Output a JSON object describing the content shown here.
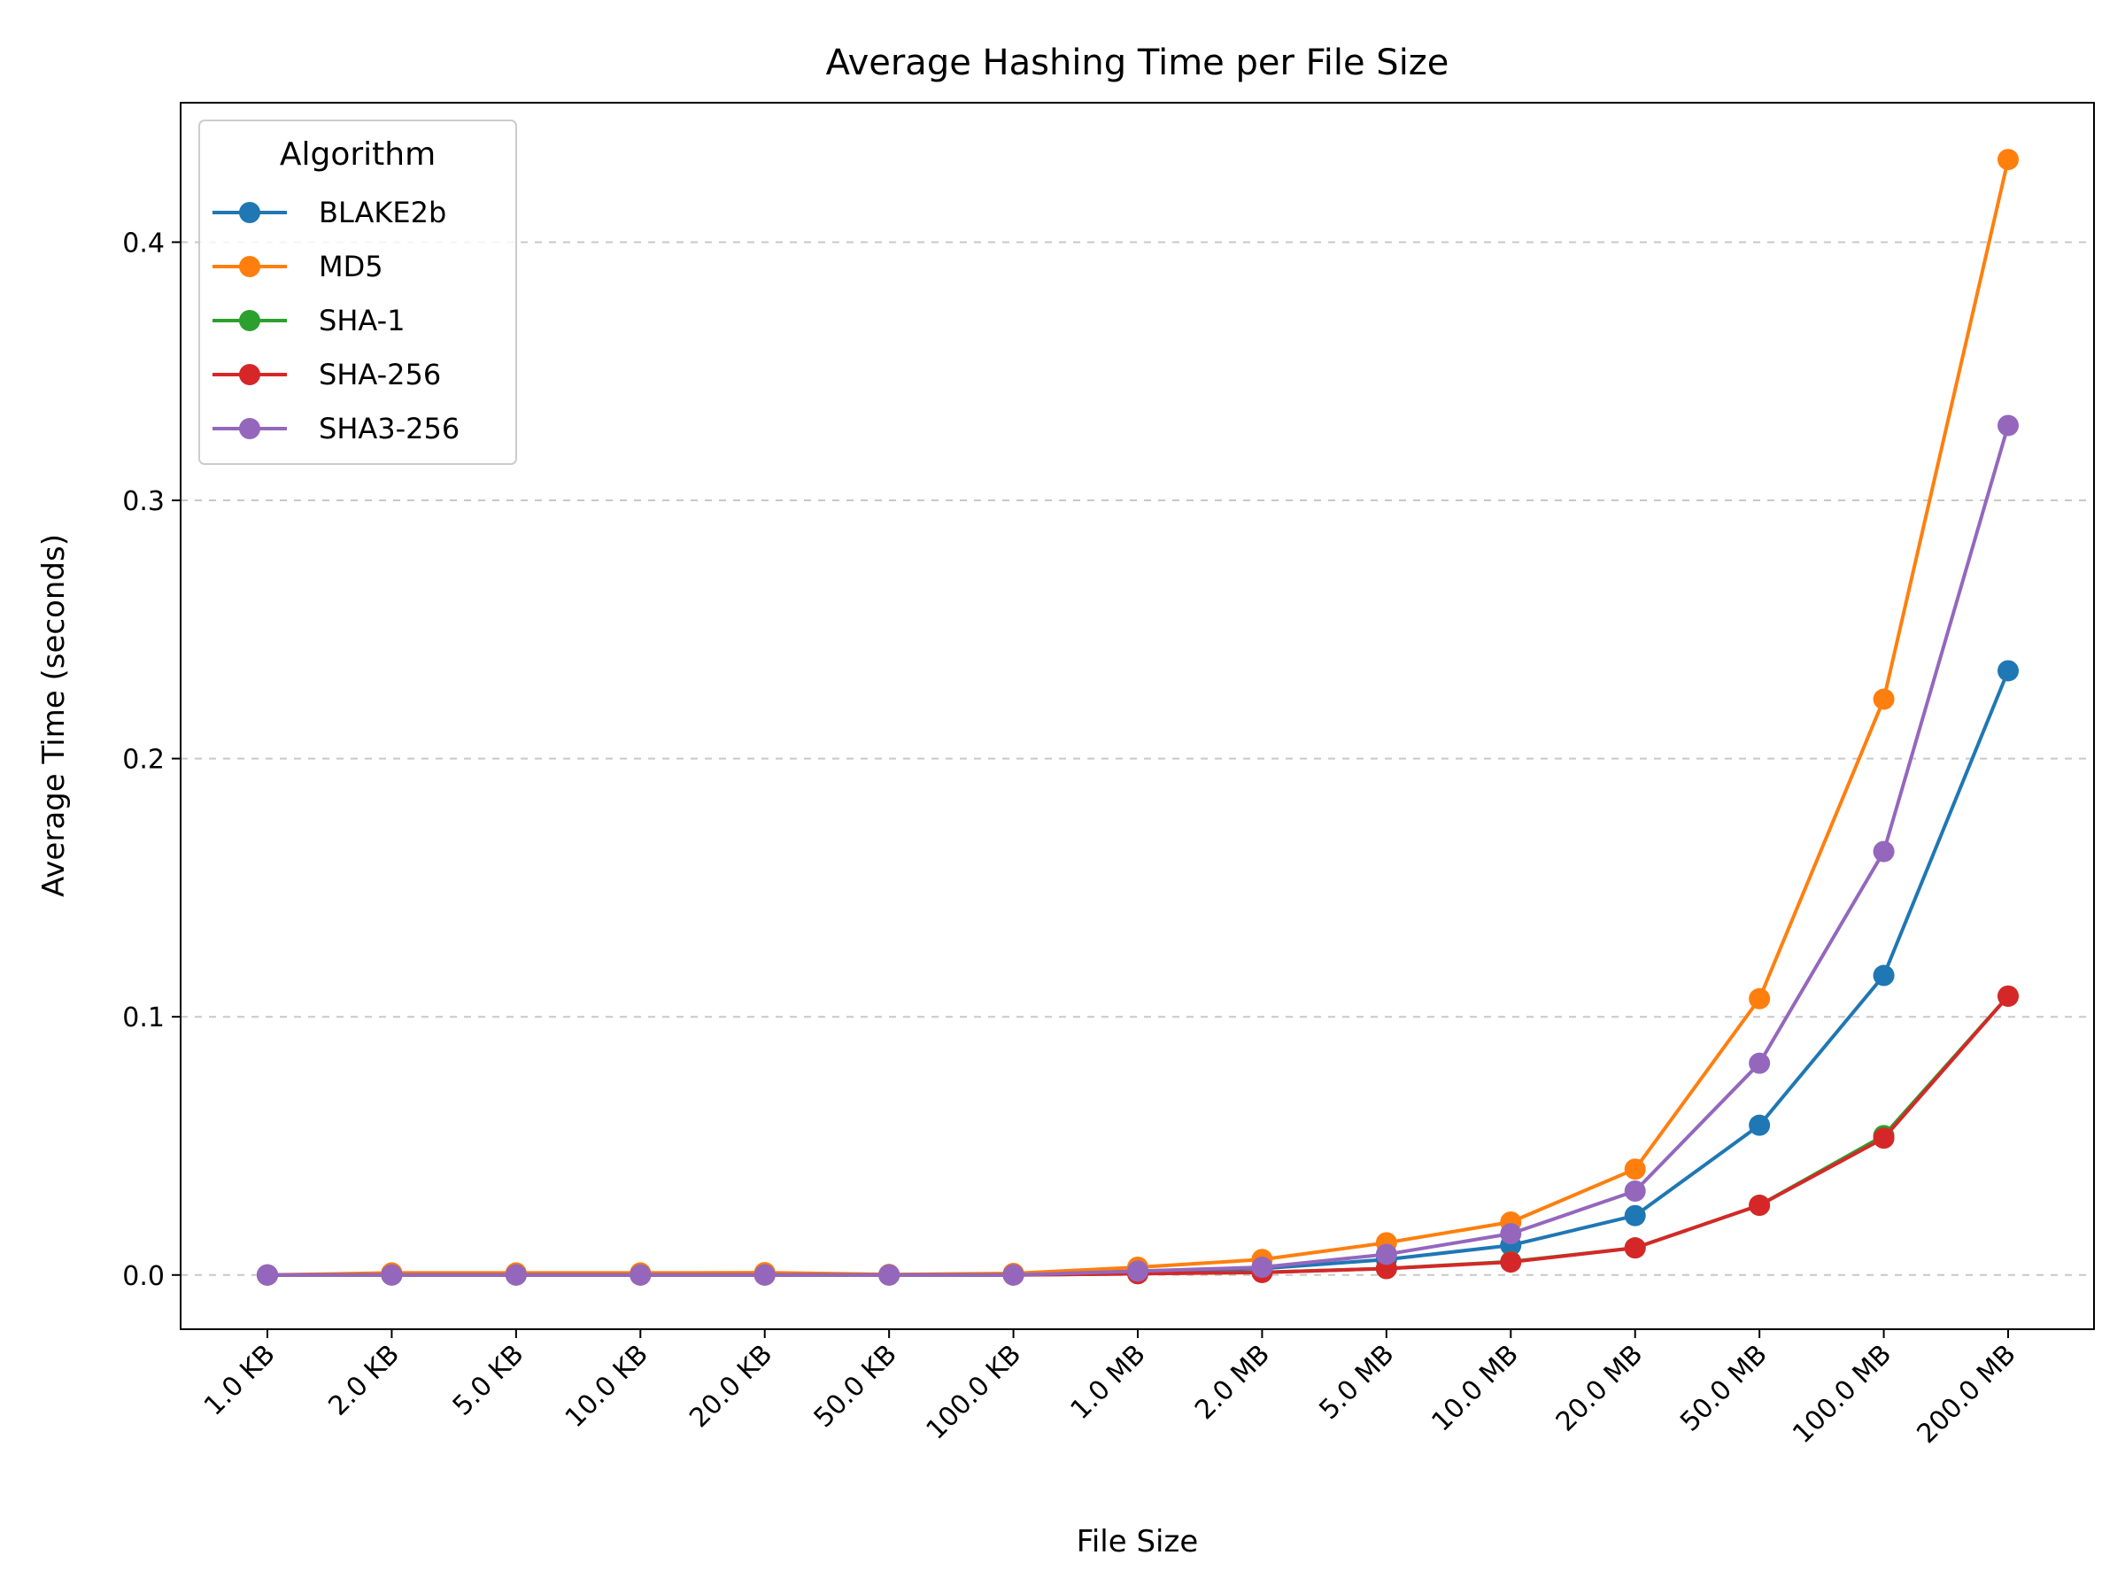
{
  "chart_data": {
    "type": "line",
    "title": "Average Hashing Time per File Size",
    "xlabel": "File Size",
    "ylabel": "Average Time (seconds)",
    "categories": [
      "1.0 KB",
      "2.0 KB",
      "5.0 KB",
      "10.0 KB",
      "20.0 KB",
      "50.0 KB",
      "100.0 KB",
      "1.0 MB",
      "2.0 MB",
      "5.0 MB",
      "10.0 MB",
      "20.0 MB",
      "50.0 MB",
      "100.0 MB",
      "200.0 MB"
    ],
    "ylim": [
      -0.021,
      0.454
    ],
    "yticks": [
      0.0,
      0.1,
      0.2,
      0.3,
      0.4
    ],
    "ytick_labels": [
      "0.0",
      "0.1",
      "0.2",
      "0.3",
      "0.4"
    ],
    "grid": "y-dashed",
    "legend": {
      "title": "Algorithm",
      "position": "top-left"
    },
    "series": [
      {
        "name": "BLAKE2b",
        "color": "#1f77b4",
        "values": [
          0.0,
          0.0002,
          0.0002,
          0.0002,
          0.0002,
          0.0001,
          0.0002,
          0.0015,
          0.0025,
          0.006,
          0.0115,
          0.023,
          0.058,
          0.116,
          0.234
        ]
      },
      {
        "name": "MD5",
        "color": "#ff7f0e",
        "values": [
          0.0,
          0.0008,
          0.0008,
          0.0008,
          0.0009,
          0.0002,
          0.0006,
          0.003,
          0.006,
          0.0125,
          0.0205,
          0.041,
          0.107,
          0.223,
          0.432
        ]
      },
      {
        "name": "SHA-1",
        "color": "#2ca02c",
        "values": [
          0.0,
          0.0,
          0.0,
          0.0,
          0.0,
          0.0,
          0.0,
          0.0005,
          0.001,
          0.0025,
          0.0052,
          0.0105,
          0.027,
          0.054,
          0.108
        ]
      },
      {
        "name": "SHA-256",
        "color": "#d62728",
        "values": [
          0.0,
          0.0,
          0.0,
          0.0,
          0.0,
          0.0,
          0.0,
          0.0005,
          0.001,
          0.0025,
          0.005,
          0.0105,
          0.027,
          0.053,
          0.108
        ]
      },
      {
        "name": "SHA3-256",
        "color": "#9467bd",
        "values": [
          0.0,
          0.0,
          0.0,
          0.0,
          0.0,
          0.0,
          0.0,
          0.0015,
          0.003,
          0.008,
          0.016,
          0.0325,
          0.082,
          0.164,
          0.329
        ]
      }
    ]
  }
}
